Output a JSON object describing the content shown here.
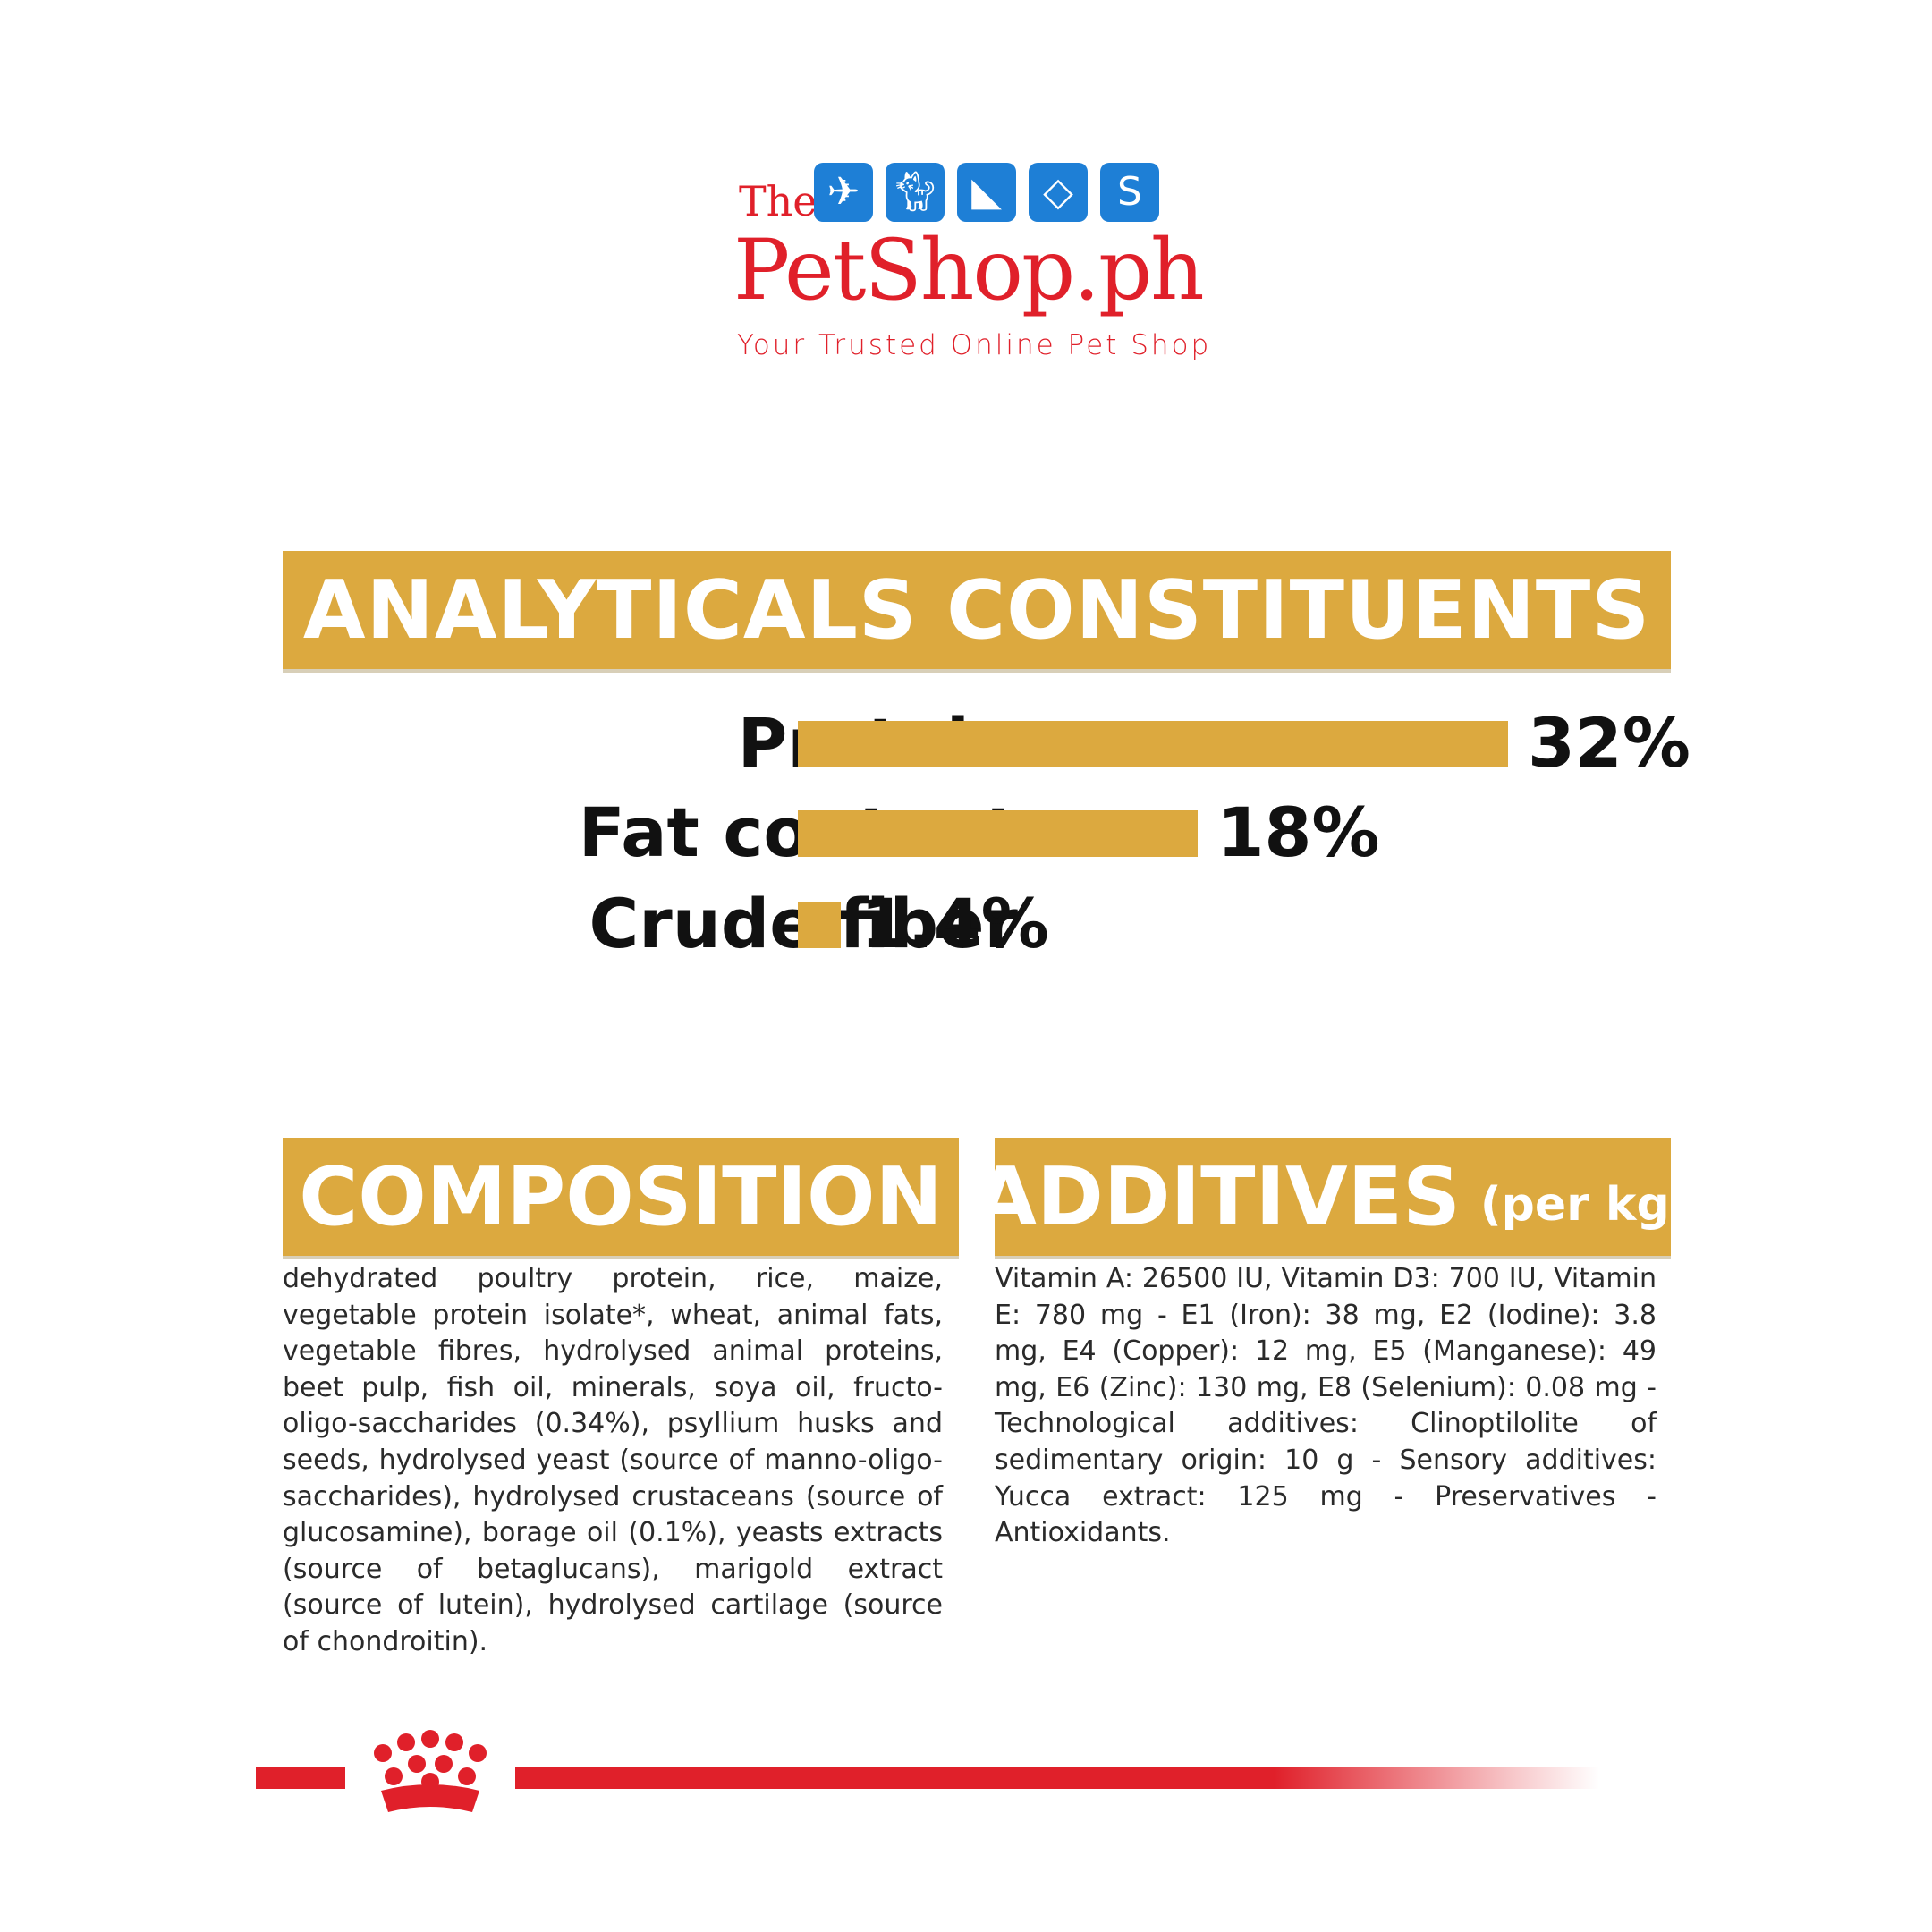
{
  "logo": {
    "the": "The",
    "name": "PetShop.ph",
    "tagline": "Your Trusted Online Pet Shop",
    "icons": [
      "bird-icon",
      "cat-icon",
      "dog-icon",
      "fish-icon",
      "snake-icon"
    ],
    "brand_color": "#e0202a",
    "icon_color": "#1e7fd6"
  },
  "analytics": {
    "title": "ANALYTICALS CONSTITUENTS"
  },
  "chart_data": {
    "type": "bar",
    "orientation": "horizontal",
    "categories": [
      "Protein",
      "Fat content",
      "Crude fiber"
    ],
    "values": [
      32,
      18,
      1.4
    ],
    "value_labels": [
      "32%",
      "18%",
      "1.4%"
    ],
    "unit": "%",
    "bar_color": "#dca93f",
    "title": "",
    "xlabel": "",
    "ylabel": ""
  },
  "composition": {
    "title": "COMPOSITION",
    "text": "dehydrated poultry protein, rice, maize, vegetable protein isolate*, wheat, animal fats, vegetable fibres, hydrolysed animal proteins, beet pulp, fish oil, minerals, soya oil, fructo-oligo-saccharides (0.34%), psyllium husks and seeds, hydrolysed yeast (source of manno-oligo-saccharides), hydrolysed crustaceans (source of glucosamine), borage oil (0.1%), yeasts extracts (source of betaglucans), marigold extract (source of lutein), hydrolysed cartilage (source of chondroitin)."
  },
  "additives": {
    "title": "ADDITIVES",
    "subtitle": "(per kg)",
    "text": "Vitamin A: 26500 IU, Vitamin D3: 700 IU, Vitamin E: 780 mg - E1 (Iron): 38 mg, E2 (Iodine): 3.8 mg, E4 (Copper): 12 mg, E5 (Manganese): 49 mg, E6 (Zinc): 130 mg, E8 (Selenium): 0.08 mg - Technological additives: Clinoptilolite of sedimentary origin: 10 g - Sensory additives: Yucca extract: 125 mg - Preservatives - Antioxidants."
  },
  "colors": {
    "gold": "#dca93f",
    "red": "#e0202a",
    "text": "#2a2a2a"
  }
}
